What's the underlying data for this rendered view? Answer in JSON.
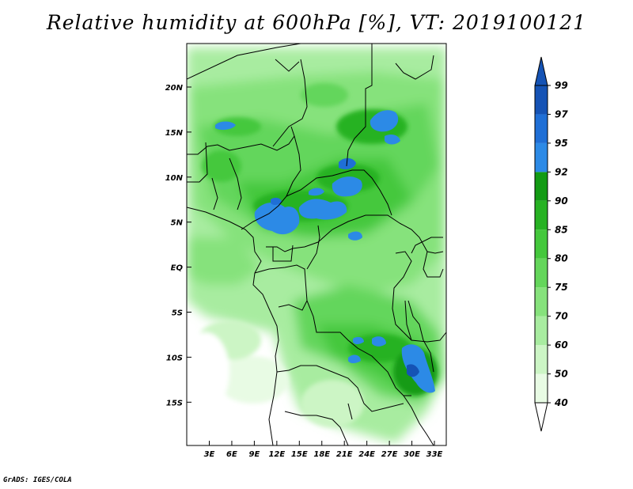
{
  "title": "Relative humidity at 600hPa [%], VT: 2019100121",
  "credit": "GrADS: IGES/COLA",
  "map": {
    "lat_ticks": [
      "20N",
      "15N",
      "10N",
      "5N",
      "EQ",
      "5S",
      "10S",
      "15S"
    ],
    "lon_ticks": [
      "3E",
      "6E",
      "9E",
      "12E",
      "15E",
      "18E",
      "21E",
      "24E",
      "27E",
      "30E",
      "33E"
    ],
    "lon_range": [
      0,
      35
    ],
    "lat_range": [
      -20,
      24.5
    ]
  },
  "colorbar": {
    "levels": [
      "40",
      "50",
      "60",
      "70",
      "75",
      "80",
      "85",
      "90",
      "92",
      "95",
      "97",
      "99"
    ],
    "colors": [
      "#ffffff",
      "#e8fbe4",
      "#ccf5c5",
      "#a8eca0",
      "#86e27c",
      "#64d65b",
      "#44c83c",
      "#27b223",
      "#139b14",
      "#2c8ae6",
      "#1f6fd6",
      "#1553b5",
      "#1553b5"
    ]
  },
  "chart_data": {
    "type": "heatmap",
    "title": "Relative humidity at 600hPa [%], VT: 2019100121",
    "variable": "Relative humidity at 600hPa",
    "units": "%",
    "valid_time": "2019100121",
    "xlabel": "",
    "ylabel": "",
    "x_ticks": [
      "3E",
      "6E",
      "9E",
      "12E",
      "15E",
      "18E",
      "21E",
      "24E",
      "27E",
      "30E",
      "33E"
    ],
    "y_ticks": [
      "20N",
      "15N",
      "10N",
      "5N",
      "EQ",
      "5S",
      "10S",
      "15S"
    ],
    "xlim": [
      0,
      35
    ],
    "ylim": [
      -20,
      24.5
    ],
    "contour_levels": [
      40,
      50,
      60,
      70,
      75,
      80,
      85,
      90,
      92,
      95,
      97,
      99
    ]
  }
}
